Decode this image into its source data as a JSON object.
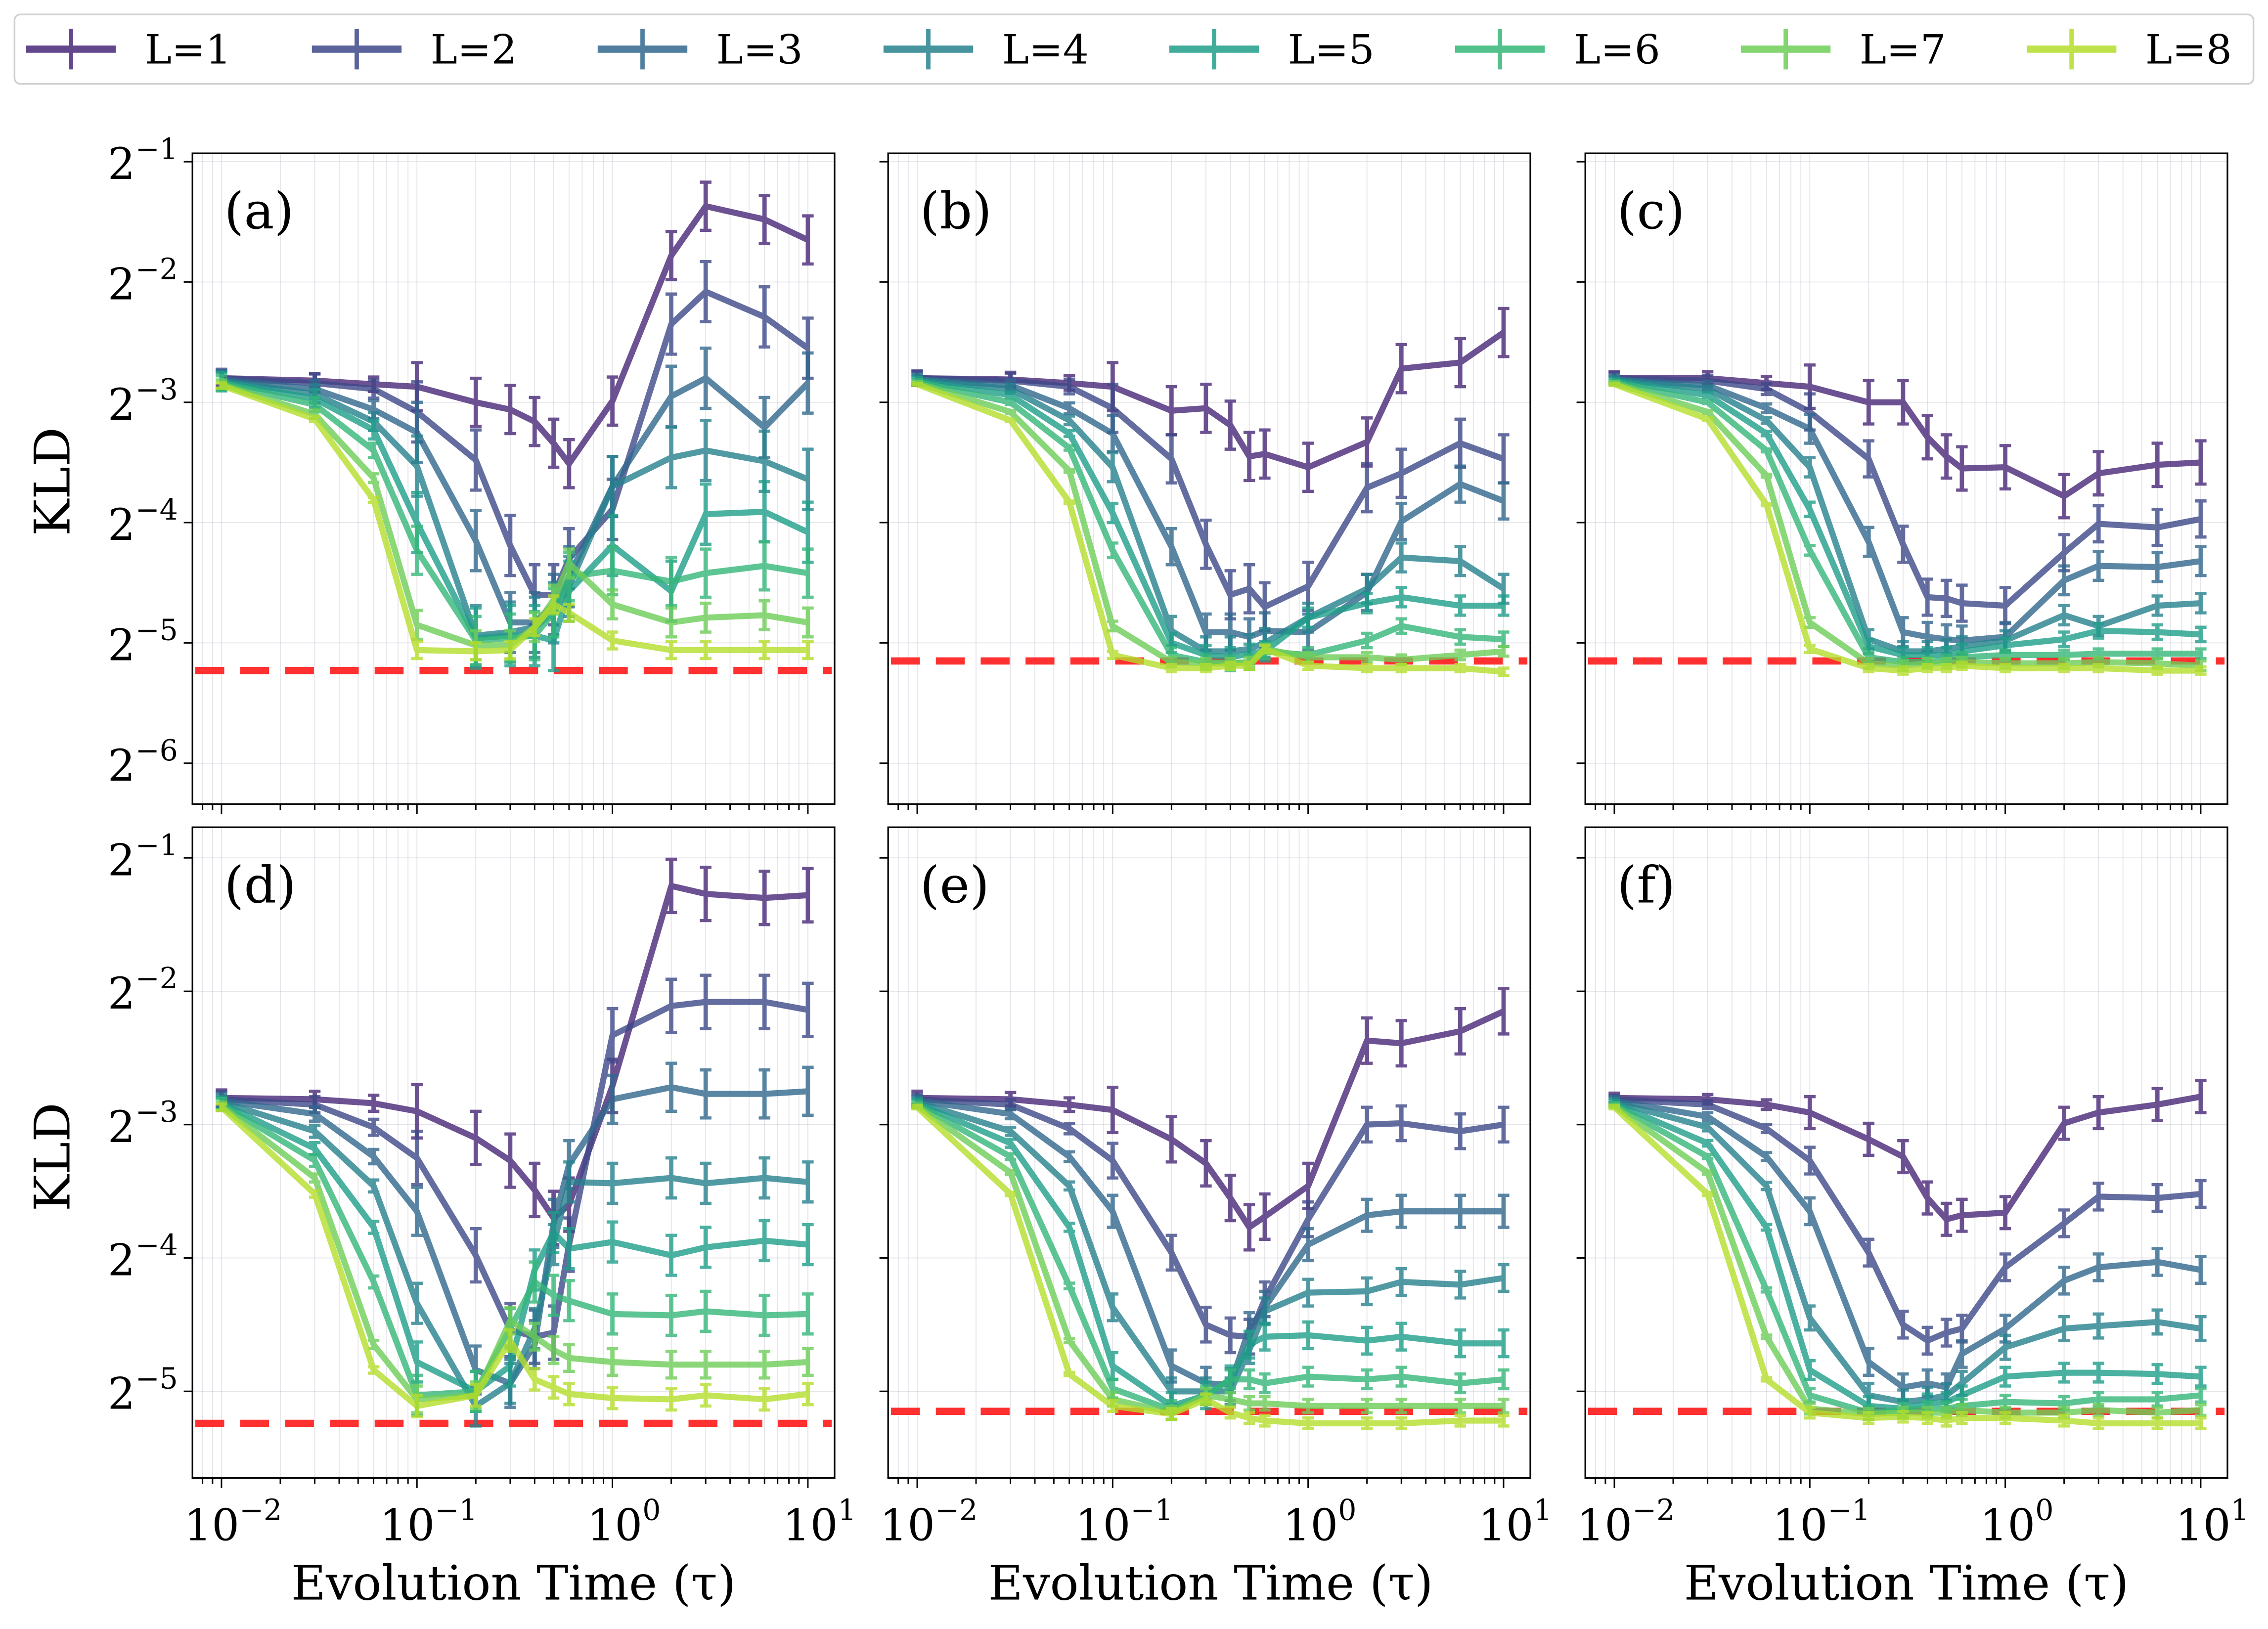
{
  "chart_data": {
    "type": "line",
    "x": [
      0.01,
      0.03,
      0.06,
      0.1,
      0.2,
      0.3,
      0.4,
      0.5,
      0.6,
      1,
      2,
      3,
      6,
      10
    ],
    "xlabel": "Evolution Time (τ)",
    "ylabel": "KLD",
    "x_scale": "log10",
    "y_scale": "log2",
    "y_values_are": "log2(KLD) exponents",
    "xlim": [
      0.0071,
      13.7
    ],
    "ylim_top_row": [
      -6.34,
      -0.93
    ],
    "ylim_bottom_row": [
      -5.65,
      -0.77
    ],
    "x_ticks": [
      {
        "base": "10",
        "exp": "−2",
        "v": 0.01
      },
      {
        "base": "10",
        "exp": "−1",
        "v": 0.1
      },
      {
        "base": "10",
        "exp": "0",
        "v": 1
      },
      {
        "base": "10",
        "exp": "1",
        "v": 10
      }
    ],
    "y_ticks_top_row": [
      {
        "base": "2",
        "exp": "−1",
        "v": -1
      },
      {
        "base": "2",
        "exp": "−2",
        "v": -2
      },
      {
        "base": "2",
        "exp": "−3",
        "v": -3
      },
      {
        "base": "2",
        "exp": "−4",
        "v": -4
      },
      {
        "base": "2",
        "exp": "−5",
        "v": -5
      },
      {
        "base": "2",
        "exp": "−6",
        "v": -6
      }
    ],
    "y_ticks_bottom_row": [
      {
        "base": "2",
        "exp": "−1",
        "v": -1
      },
      {
        "base": "2",
        "exp": "−2",
        "v": -2
      },
      {
        "base": "2",
        "exp": "−3",
        "v": -3
      },
      {
        "base": "2",
        "exp": "−4",
        "v": -4
      },
      {
        "base": "2",
        "exp": "−5",
        "v": -5
      }
    ],
    "grid": true,
    "legend": {
      "placement": "top",
      "labels": [
        "L=1",
        "L=2",
        "L=3",
        "L=4",
        "L=5",
        "L=6",
        "L=7",
        "L=8"
      ]
    },
    "colors": [
      "#482878",
      "#3e4989",
      "#31688e",
      "#26828e",
      "#1f9e89",
      "#35b779",
      "#6ece58",
      "#b5de2b"
    ],
    "reference_line_color": "#ff3030",
    "panels": [
      {
        "label": "(a)",
        "reference_line": -5.23,
        "err": [
          0.2,
          0.25,
          0.25,
          0.25,
          0.25,
          0.2,
          0.12,
          0.07
        ],
        "series": [
          [
            -2.8,
            -2.82,
            -2.85,
            -2.87,
            -3.0,
            -3.06,
            -3.16,
            -3.34,
            -3.51,
            -2.99,
            -1.78,
            -1.37,
            -1.48,
            -1.65
          ],
          [
            -2.8,
            -2.84,
            -2.89,
            -3.08,
            -3.48,
            -4.19,
            -4.6,
            -4.6,
            -4.3,
            -3.89,
            -2.35,
            -2.08,
            -2.29,
            -2.55
          ],
          [
            -2.81,
            -2.89,
            -3.06,
            -3.25,
            -4.15,
            -4.83,
            -4.83,
            -4.68,
            -4.45,
            -3.7,
            -2.95,
            -2.8,
            -3.21,
            -2.84
          ],
          [
            -2.82,
            -2.93,
            -3.16,
            -3.53,
            -4.94,
            -4.91,
            -4.87,
            -4.75,
            -4.53,
            -3.7,
            -3.46,
            -3.4,
            -3.49,
            -3.64
          ],
          [
            -2.83,
            -2.97,
            -3.23,
            -4.0,
            -4.96,
            -4.94,
            -4.94,
            -4.98,
            -4.57,
            -4.19,
            -4.57,
            -3.93,
            -3.91,
            -4.08
          ],
          [
            -2.84,
            -3.02,
            -3.4,
            -4.23,
            -4.98,
            -4.96,
            -4.94,
            -4.75,
            -4.45,
            -4.4,
            -4.49,
            -4.42,
            -4.36,
            -4.42
          ],
          [
            -2.85,
            -3.1,
            -3.63,
            -4.85,
            -5.02,
            -5.02,
            -4.87,
            -4.64,
            -4.34,
            -4.68,
            -4.83,
            -4.79,
            -4.77,
            -4.83
          ],
          [
            -2.86,
            -3.14,
            -3.81,
            -5.06,
            -5.07,
            -5.06,
            -4.87,
            -4.68,
            -4.75,
            -4.98,
            -5.06,
            -5.06,
            -5.06,
            -5.06
          ]
        ]
      },
      {
        "label": "(b)",
        "reference_line": -5.15,
        "err": [
          0.2,
          0.2,
          0.15,
          0.12,
          0.08,
          0.06,
          0.04,
          0.03
        ],
        "series": [
          [
            -2.8,
            -2.81,
            -2.84,
            -2.87,
            -3.07,
            -3.05,
            -3.19,
            -3.45,
            -3.43,
            -3.54,
            -3.33,
            -2.72,
            -2.67,
            -2.42
          ],
          [
            -2.8,
            -2.82,
            -2.87,
            -3.05,
            -3.47,
            -4.18,
            -4.6,
            -4.55,
            -4.7,
            -4.53,
            -3.71,
            -3.59,
            -3.34,
            -3.47
          ],
          [
            -2.81,
            -2.86,
            -3.05,
            -3.26,
            -4.2,
            -4.91,
            -4.91,
            -4.95,
            -4.9,
            -4.91,
            -4.58,
            -3.99,
            -3.68,
            -3.82
          ],
          [
            -2.81,
            -2.89,
            -3.15,
            -3.54,
            -4.9,
            -5.07,
            -5.07,
            -5.05,
            -5.0,
            -4.79,
            -4.55,
            -4.29,
            -4.32,
            -4.55
          ],
          [
            -2.82,
            -2.94,
            -3.26,
            -3.92,
            -5.0,
            -5.1,
            -5.12,
            -5.09,
            -5.07,
            -4.79,
            -4.67,
            -4.62,
            -4.69,
            -4.69
          ],
          [
            -2.83,
            -3.0,
            -3.38,
            -4.23,
            -5.1,
            -5.16,
            -5.17,
            -5.16,
            -5.07,
            -5.1,
            -4.98,
            -4.86,
            -4.95,
            -4.97
          ],
          [
            -2.84,
            -3.08,
            -3.57,
            -4.86,
            -5.16,
            -5.17,
            -5.17,
            -5.16,
            -5.05,
            -5.12,
            -5.12,
            -5.14,
            -5.1,
            -5.07
          ],
          [
            -2.85,
            -3.15,
            -3.83,
            -5.1,
            -5.21,
            -5.21,
            -5.19,
            -5.19,
            -5.05,
            -5.19,
            -5.21,
            -5.21,
            -5.21,
            -5.24
          ]
        ]
      },
      {
        "label": "(c)",
        "reference_line": -5.15,
        "err": [
          0.18,
          0.15,
          0.12,
          0.08,
          0.06,
          0.04,
          0.04,
          0.03
        ],
        "series": [
          [
            -2.8,
            -2.8,
            -2.84,
            -2.87,
            -3.0,
            -3.0,
            -3.29,
            -3.45,
            -3.55,
            -3.54,
            -3.78,
            -3.59,
            -3.52,
            -3.5
          ],
          [
            -2.8,
            -2.82,
            -2.89,
            -3.08,
            -3.47,
            -4.18,
            -4.62,
            -4.63,
            -4.67,
            -4.69,
            -4.25,
            -4.01,
            -4.04,
            -3.97
          ],
          [
            -2.81,
            -2.86,
            -3.05,
            -3.22,
            -4.16,
            -4.91,
            -4.95,
            -4.97,
            -4.98,
            -4.95,
            -4.48,
            -4.36,
            -4.37,
            -4.32
          ],
          [
            -2.81,
            -2.89,
            -3.15,
            -3.54,
            -4.97,
            -5.07,
            -5.07,
            -5.05,
            -5.03,
            -4.98,
            -4.77,
            -4.86,
            -4.69,
            -4.67
          ],
          [
            -2.82,
            -2.94,
            -3.26,
            -3.89,
            -5.03,
            -5.1,
            -5.1,
            -5.1,
            -5.07,
            -5.02,
            -4.97,
            -4.9,
            -4.91,
            -4.93
          ],
          [
            -2.83,
            -3.0,
            -3.4,
            -4.23,
            -5.12,
            -5.16,
            -5.16,
            -5.14,
            -5.12,
            -5.1,
            -5.1,
            -5.09,
            -5.09,
            -5.09
          ],
          [
            -2.84,
            -3.08,
            -3.61,
            -4.83,
            -5.17,
            -5.19,
            -5.17,
            -5.17,
            -5.16,
            -5.17,
            -5.17,
            -5.16,
            -5.17,
            -5.19
          ],
          [
            -2.85,
            -3.14,
            -3.85,
            -5.05,
            -5.21,
            -5.23,
            -5.21,
            -5.21,
            -5.19,
            -5.21,
            -5.21,
            -5.21,
            -5.23,
            -5.23
          ]
        ]
      },
      {
        "label": "(d)",
        "reference_line": -5.24,
        "err": [
          0.2,
          0.2,
          0.18,
          0.15,
          0.15,
          0.15,
          0.1,
          0.08
        ],
        "series": [
          [
            -2.8,
            -2.81,
            -2.84,
            -2.9,
            -3.1,
            -3.27,
            -3.49,
            -3.7,
            -3.6,
            -2.71,
            -1.21,
            -1.27,
            -1.3,
            -1.28
          ],
          [
            -2.81,
            -2.85,
            -3.02,
            -3.25,
            -3.98,
            -4.54,
            -4.59,
            -4.56,
            -3.9,
            -2.33,
            -2.11,
            -2.08,
            -2.08,
            -2.14
          ],
          [
            -2.82,
            -2.92,
            -3.24,
            -3.65,
            -4.84,
            -4.94,
            -4.65,
            -3.74,
            -3.3,
            -2.81,
            -2.72,
            -2.77,
            -2.77,
            -2.75
          ],
          [
            -2.83,
            -3.05,
            -3.46,
            -4.34,
            -5.11,
            -4.94,
            -4.53,
            -3.9,
            -3.43,
            -3.44,
            -3.4,
            -3.44,
            -3.4,
            -3.43
          ],
          [
            -2.84,
            -3.18,
            -3.77,
            -4.78,
            -5.0,
            -4.81,
            -4.09,
            -3.81,
            -3.93,
            -3.88,
            -3.98,
            -3.92,
            -3.87,
            -3.9
          ],
          [
            -2.85,
            -3.27,
            -4.18,
            -5.03,
            -5.0,
            -4.53,
            -4.18,
            -4.28,
            -4.32,
            -4.42,
            -4.43,
            -4.4,
            -4.43,
            -4.42
          ],
          [
            -2.86,
            -3.4,
            -4.65,
            -5.06,
            -5.03,
            -4.47,
            -4.59,
            -4.69,
            -4.75,
            -4.78,
            -4.8,
            -4.8,
            -4.8,
            -4.78
          ],
          [
            -2.87,
            -3.52,
            -4.84,
            -5.11,
            -5.03,
            -4.62,
            -4.91,
            -4.97,
            -5.02,
            -5.05,
            -5.06,
            -5.03,
            -5.06,
            -5.02
          ]
        ]
      },
      {
        "label": "(e)",
        "reference_line": -5.15,
        "err": [
          0.17,
          0.13,
          0.12,
          0.1,
          0.1,
          0.07,
          0.05,
          0.04
        ],
        "series": [
          [
            -2.8,
            -2.81,
            -2.85,
            -2.89,
            -3.11,
            -3.29,
            -3.55,
            -3.77,
            -3.69,
            -3.46,
            -2.37,
            -2.39,
            -2.3,
            -2.15
          ],
          [
            -2.81,
            -2.85,
            -3.03,
            -3.27,
            -3.96,
            -4.5,
            -4.58,
            -4.59,
            -4.31,
            -3.71,
            -3.0,
            -2.99,
            -3.05,
            -3.0
          ],
          [
            -2.82,
            -2.92,
            -3.24,
            -3.65,
            -4.81,
            -4.94,
            -4.95,
            -4.53,
            -4.37,
            -3.9,
            -3.68,
            -3.65,
            -3.65,
            -3.65
          ],
          [
            -2.83,
            -3.05,
            -3.46,
            -4.37,
            -5.0,
            -5.0,
            -5.0,
            -4.69,
            -4.4,
            -4.26,
            -4.25,
            -4.18,
            -4.2,
            -4.15
          ],
          [
            -2.84,
            -3.14,
            -3.77,
            -4.81,
            -5.11,
            -5.03,
            -4.91,
            -4.65,
            -4.59,
            -4.58,
            -4.62,
            -4.59,
            -4.64,
            -4.64
          ],
          [
            -2.85,
            -3.24,
            -4.21,
            -4.98,
            -5.14,
            -5.03,
            -4.91,
            -4.91,
            -4.94,
            -4.89,
            -4.91,
            -4.89,
            -4.94,
            -4.91
          ],
          [
            -2.86,
            -3.36,
            -4.62,
            -5.06,
            -5.16,
            -5.03,
            -5.06,
            -5.09,
            -5.09,
            -5.11,
            -5.11,
            -5.11,
            -5.11,
            -5.11
          ],
          [
            -2.87,
            -3.52,
            -4.87,
            -5.11,
            -5.17,
            -5.06,
            -5.16,
            -5.2,
            -5.22,
            -5.24,
            -5.24,
            -5.24,
            -5.22,
            -5.22
          ]
        ]
      },
      {
        "label": "(f)",
        "reference_line": -5.15,
        "err": [
          0.12,
          0.1,
          0.1,
          0.09,
          0.07,
          0.05,
          0.04,
          0.04
        ],
        "series": [
          [
            -2.8,
            -2.81,
            -2.85,
            -2.91,
            -3.11,
            -3.24,
            -3.55,
            -3.71,
            -3.68,
            -3.66,
            -2.99,
            -2.91,
            -2.85,
            -2.79
          ],
          [
            -2.81,
            -2.85,
            -3.03,
            -3.27,
            -3.96,
            -4.5,
            -4.62,
            -4.56,
            -4.53,
            -4.07,
            -3.74,
            -3.54,
            -3.55,
            -3.52
          ],
          [
            -2.82,
            -2.94,
            -3.24,
            -3.65,
            -4.78,
            -4.97,
            -4.94,
            -4.97,
            -4.72,
            -4.53,
            -4.17,
            -4.07,
            -4.03,
            -4.09
          ],
          [
            -2.83,
            -3.02,
            -3.46,
            -4.45,
            -5.03,
            -5.08,
            -5.06,
            -5.03,
            -4.94,
            -4.67,
            -4.53,
            -4.51,
            -4.48,
            -4.53
          ],
          [
            -2.84,
            -3.14,
            -3.77,
            -4.84,
            -5.11,
            -5.13,
            -5.09,
            -5.08,
            -5.03,
            -4.89,
            -4.86,
            -4.86,
            -4.87,
            -4.89
          ],
          [
            -2.85,
            -3.24,
            -4.24,
            -5.03,
            -5.16,
            -5.14,
            -5.13,
            -5.13,
            -5.11,
            -5.08,
            -5.09,
            -5.06,
            -5.06,
            -5.03
          ],
          [
            -2.86,
            -3.36,
            -4.59,
            -5.13,
            -5.17,
            -5.16,
            -5.16,
            -5.16,
            -5.14,
            -5.16,
            -5.16,
            -5.14,
            -5.16,
            -5.14
          ],
          [
            -2.87,
            -3.52,
            -4.91,
            -5.16,
            -5.2,
            -5.19,
            -5.2,
            -5.22,
            -5.2,
            -5.2,
            -5.22,
            -5.24,
            -5.24,
            -5.24
          ]
        ]
      }
    ]
  }
}
